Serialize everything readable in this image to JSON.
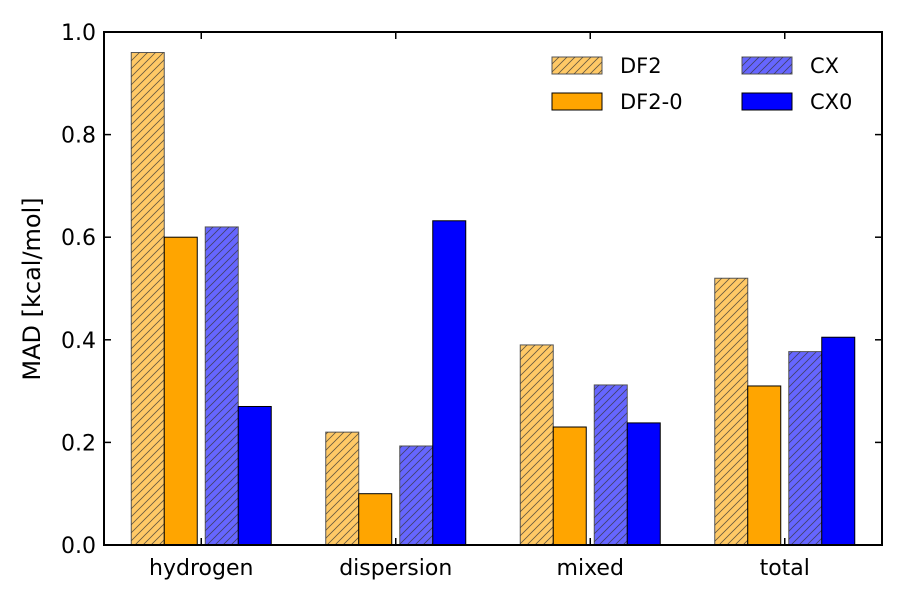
{
  "chart_data": {
    "type": "bar",
    "title": "",
    "xlabel": "",
    "ylabel": "MAD [kcal/mol]",
    "ylim": [
      0,
      1.0
    ],
    "yticks": [
      0.0,
      0.2,
      0.4,
      0.6,
      0.8,
      1.0
    ],
    "ytick_labels": [
      "0.0",
      "0.2",
      "0.4",
      "0.6",
      "0.8",
      "1.0"
    ],
    "categories": [
      "hydrogen",
      "dispersion",
      "mixed",
      "total"
    ],
    "legend_position": "top-right",
    "series": [
      {
        "name": "DF2",
        "values": [
          0.96,
          0.22,
          0.39,
          0.52
        ],
        "color": "#ffc966",
        "hatch": true
      },
      {
        "name": "DF2-0",
        "values": [
          0.6,
          0.1,
          0.23,
          0.31
        ],
        "color": "#ffa500",
        "hatch": false
      },
      {
        "name": "CX",
        "values": [
          0.62,
          0.193,
          0.312,
          0.377
        ],
        "color": "#6666ff",
        "hatch": true
      },
      {
        "name": "CX0",
        "values": [
          0.27,
          0.632,
          0.238,
          0.405
        ],
        "color": "#0000ff",
        "hatch": false
      }
    ]
  }
}
